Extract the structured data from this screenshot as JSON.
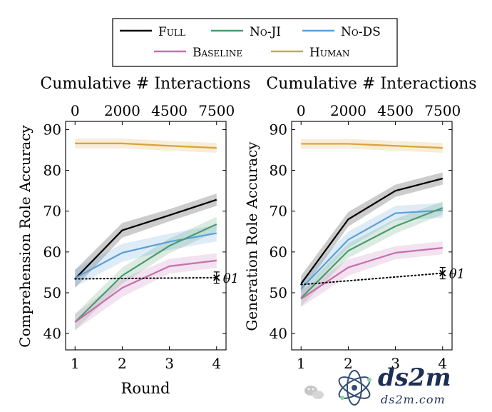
{
  "legend": {
    "entries": [
      {
        "name": "Full",
        "color": "#000000"
      },
      {
        "name": "No-JI",
        "color": "#4a9a6e"
      },
      {
        "name": "No-DS",
        "color": "#5b9fd6"
      },
      {
        "name": "Baseline",
        "color": "#c46fae"
      },
      {
        "name": "Human",
        "color": "#d9a33a"
      }
    ]
  },
  "chart_data": [
    {
      "type": "line",
      "top_axis_title": "Cumulative # Interactions",
      "top_ticks": [
        {
          "label": "0",
          "round": 1
        },
        {
          "label": "2000",
          "round": 2
        },
        {
          "label": "4500",
          "round": 3
        },
        {
          "label": "7500",
          "round": 4
        }
      ],
      "xlabel": "Round",
      "ylabel": "Comprehension Role Accuracy",
      "x": [
        1,
        2,
        3,
        4
      ],
      "xlim": [
        0.8,
        4.2
      ],
      "ylim": [
        36,
        92
      ],
      "yticks": [
        40,
        50,
        60,
        70,
        80,
        90
      ],
      "series": [
        {
          "name": "Human",
          "color": "#d9a33a",
          "values": [
            86.6,
            86.6,
            86.0,
            85.5
          ],
          "ci": [
            1.2,
            1.2,
            1.2,
            1.2
          ]
        },
        {
          "name": "Full",
          "color": "#000000",
          "values": [
            53.4,
            65.3,
            69.0,
            72.8
          ],
          "ci": [
            2.2,
            1.8,
            1.5,
            1.5
          ]
        },
        {
          "name": "No-DS",
          "color": "#5b9fd6",
          "values": [
            53.6,
            59.8,
            62.5,
            64.6
          ],
          "ci": [
            2.2,
            2.2,
            2.0,
            2.0
          ]
        },
        {
          "name": "No-JI",
          "color": "#4a9a6e",
          "values": [
            42.8,
            54.2,
            61.5,
            66.8
          ],
          "ci": [
            2.0,
            2.0,
            1.8,
            1.8
          ]
        },
        {
          "name": "Baseline",
          "color": "#c46fae",
          "values": [
            42.8,
            51.2,
            56.5,
            57.9
          ],
          "ci": [
            2.0,
            2.2,
            1.8,
            1.8
          ]
        }
      ],
      "threshold": {
        "label": "θ1",
        "x": [
          1,
          4
        ],
        "y": [
          53.4,
          53.7
        ],
        "error": 1.4
      }
    },
    {
      "type": "line",
      "top_axis_title": "Cumulative # Interactions",
      "top_ticks": [
        {
          "label": "0",
          "round": 1
        },
        {
          "label": "2000",
          "round": 2
        },
        {
          "label": "4500",
          "round": 3
        },
        {
          "label": "7500",
          "round": 4
        }
      ],
      "xlabel": "",
      "ylabel": "Generation Role Accuracy",
      "x": [
        1,
        2,
        3,
        4
      ],
      "xlim": [
        0.8,
        4.2
      ],
      "ylim": [
        36,
        92
      ],
      "yticks": [
        40,
        50,
        60,
        70,
        80,
        90
      ],
      "series": [
        {
          "name": "Human",
          "color": "#d9a33a",
          "values": [
            86.5,
            86.5,
            86.0,
            85.5
          ],
          "ci": [
            1.2,
            1.2,
            1.2,
            1.2
          ]
        },
        {
          "name": "Full",
          "color": "#000000",
          "values": [
            52.2,
            68.0,
            75.0,
            78.0
          ],
          "ci": [
            2.0,
            1.8,
            1.5,
            1.5
          ]
        },
        {
          "name": "No-DS",
          "color": "#5b9fd6",
          "values": [
            51.0,
            63.0,
            69.5,
            70.2
          ],
          "ci": [
            2.0,
            2.0,
            1.8,
            1.8
          ]
        },
        {
          "name": "No-JI",
          "color": "#4a9a6e",
          "values": [
            48.7,
            60.3,
            66.3,
            70.8
          ],
          "ci": [
            2.0,
            1.8,
            1.8,
            1.6
          ]
        },
        {
          "name": "Baseline",
          "color": "#c46fae",
          "values": [
            48.5,
            56.2,
            59.8,
            61.0
          ],
          "ci": [
            2.0,
            2.0,
            1.6,
            1.6
          ]
        }
      ],
      "threshold": {
        "label": "θ1",
        "x": [
          1,
          4
        ],
        "y": [
          52.0,
          54.8
        ],
        "error": 1.4
      }
    }
  ],
  "watermark": {
    "brand": "DS2M",
    "url": "ds2m.com"
  }
}
